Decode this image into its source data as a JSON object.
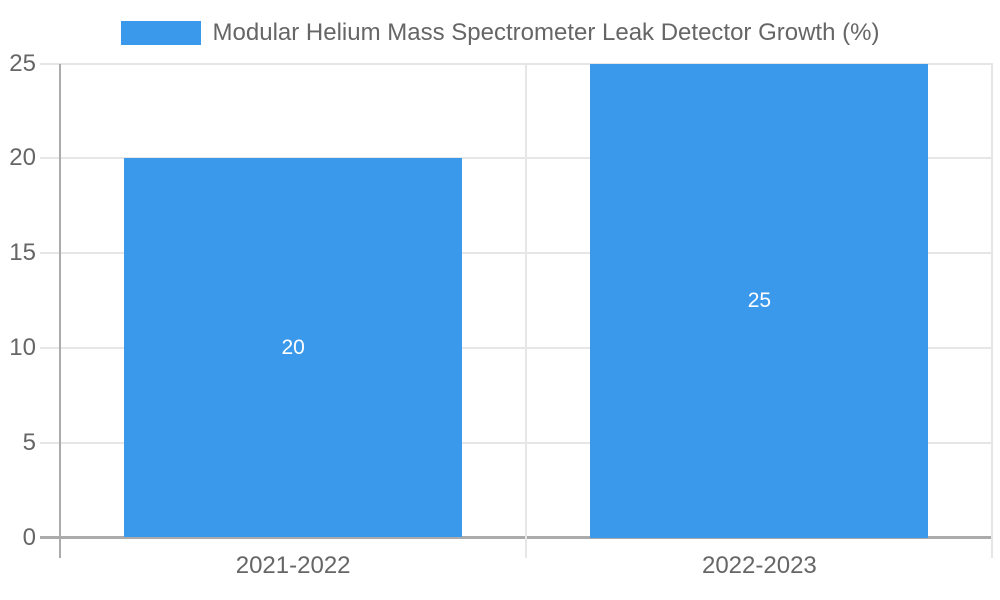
{
  "chart_data": {
    "type": "bar",
    "legend": {
      "label": "Modular Helium Mass Spectrometer Leak Detector Growth (%)",
      "position": "top"
    },
    "categories": [
      "2021-2022",
      "2022-2023"
    ],
    "series": [
      {
        "name": "Modular Helium Mass Spectrometer Leak Detector Growth (%)",
        "values": [
          20,
          25
        ]
      }
    ],
    "value_labels": [
      "20",
      "25"
    ],
    "xlabel": "",
    "ylabel": "",
    "ylim": [
      0,
      25
    ],
    "yticks": [
      0,
      5,
      10,
      15,
      20,
      25
    ],
    "grid": true,
    "legend_position": "top",
    "colors": {
      "bar": "#3b99ec",
      "value_label": "#ffffff",
      "gridline": "#e6e6e6",
      "axis_line": "#ababab",
      "tick_text": "#666666",
      "legend_text": "#666666",
      "background": "#ffffff"
    }
  }
}
